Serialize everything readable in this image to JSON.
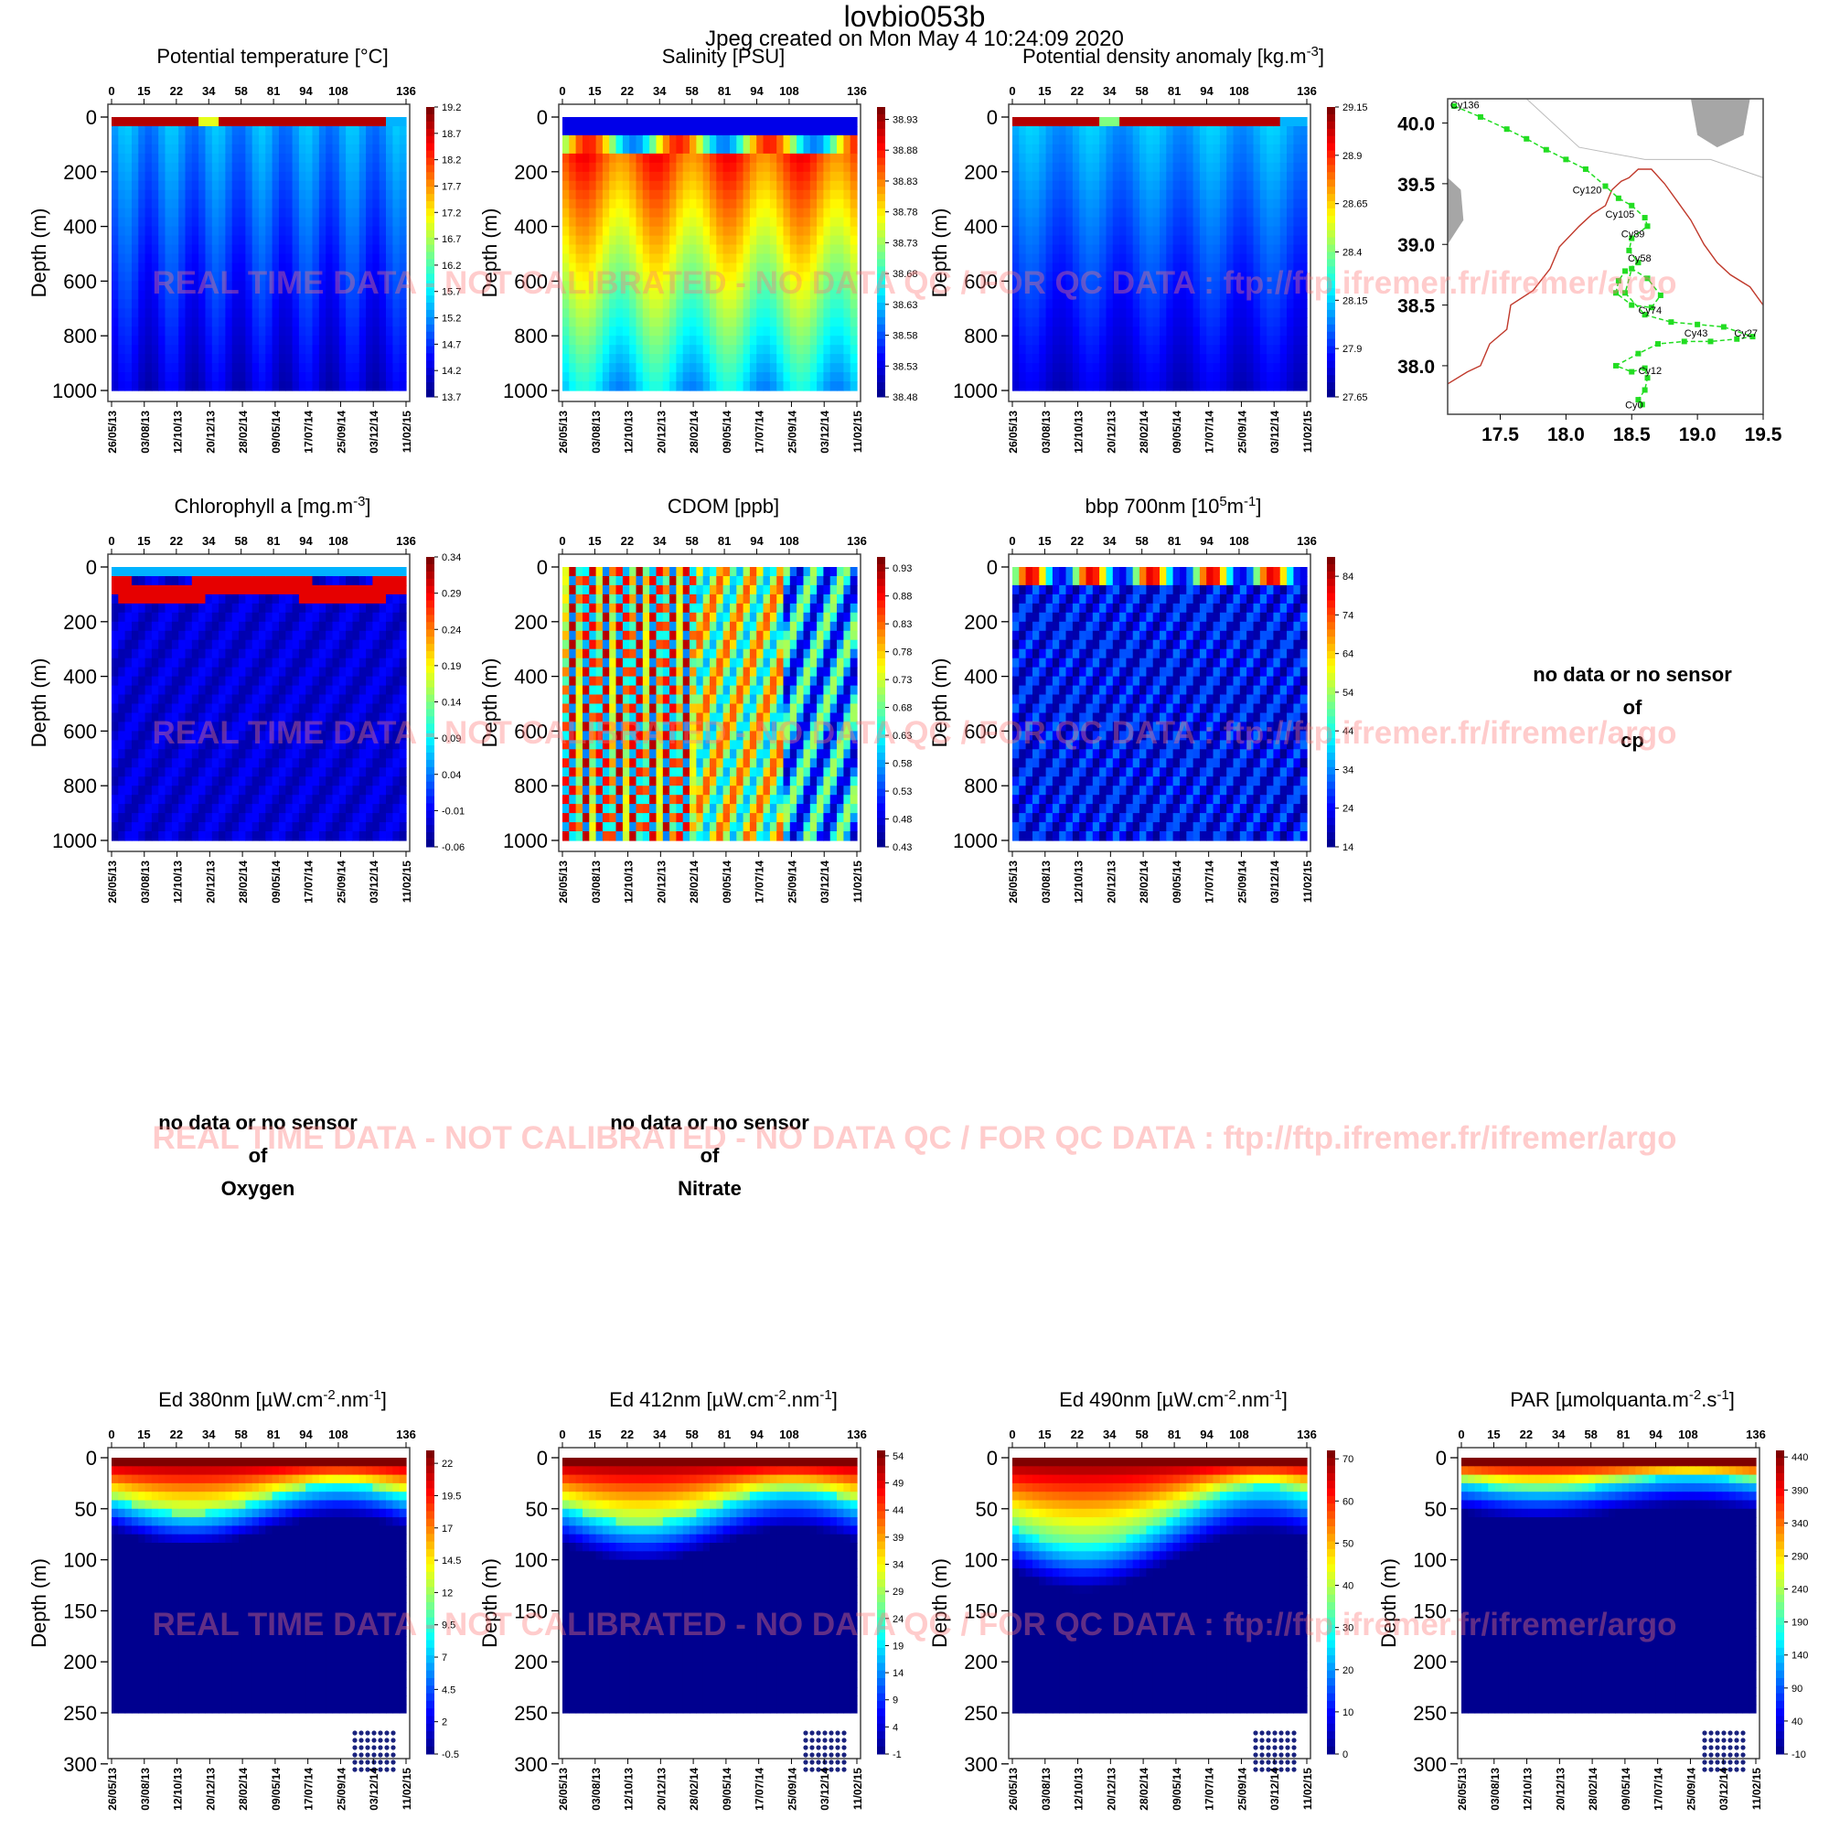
{
  "header": {
    "title": "lovbio053b",
    "subtitle": "Jpeg created on  Mon May  4 10:24:09 2020"
  },
  "watermark": "REAL TIME DATA - NOT CALIBRATED - NO DATA QC   /  FOR QC DATA : ftp://ftp.ifremer.fr/ifremer/argo",
  "no_data": {
    "line1": "no data or no sensor",
    "line2": "of",
    "cp": "cp",
    "oxygen": "Oxygen",
    "nitrate": "Nitrate"
  },
  "colors": {
    "scale": [
      "#00008f",
      "#0000ff",
      "#0080ff",
      "#00ffff",
      "#80ff80",
      "#ffff00",
      "#ff8000",
      "#ff0000",
      "#800000"
    ],
    "track": "#22dd22",
    "coast": "#c0392b",
    "land": "#a6a6a6"
  },
  "chart_data": [
    {
      "type": "heatmap",
      "title": "Potential temperature [°C]",
      "ylabel": "Depth (m)",
      "cycles": [
        "0",
        "15",
        "22",
        "34",
        "58",
        "81",
        "94",
        "108",
        "136"
      ],
      "dates": [
        "26/05/13",
        "03/08/13",
        "12/10/13",
        "20/12/13",
        "28/02/14",
        "09/05/14",
        "17/07/14",
        "25/09/14",
        "03/12/14",
        "11/02/15"
      ],
      "y_ticks": [
        0,
        200,
        400,
        600,
        800,
        1000
      ],
      "ylim": [
        0,
        1000
      ],
      "colorbar": [
        "19.2",
        "18.7",
        "18.2",
        "17.7",
        "17.2",
        "16.7",
        "16.2",
        "15.7",
        "15.2",
        "14.7",
        "14.2",
        "13.7"
      ],
      "vmin": 13.7,
      "vmax": 19.2
    },
    {
      "type": "heatmap",
      "title": "Salinity [PSU]",
      "ylabel": "Depth (m)",
      "cycles": [
        "0",
        "15",
        "22",
        "34",
        "58",
        "81",
        "94",
        "108",
        "136"
      ],
      "dates": [
        "26/05/13",
        "03/08/13",
        "12/10/13",
        "20/12/13",
        "28/02/14",
        "09/05/14",
        "17/07/14",
        "25/09/14",
        "03/12/14",
        "11/02/15"
      ],
      "y_ticks": [
        0,
        200,
        400,
        600,
        800,
        1000
      ],
      "ylim": [
        0,
        1000
      ],
      "colorbar": [
        "38.93",
        "38.88",
        "38.83",
        "38.78",
        "38.73",
        "38.68",
        "38.63",
        "38.58",
        "38.53",
        "38.48"
      ],
      "vmin": 38.48,
      "vmax": 38.95
    },
    {
      "type": "heatmap",
      "title": "Potential density anomaly [kg.m",
      "title_sup": "-3",
      "title_end": "]",
      "ylabel": "Depth (m)",
      "cycles": [
        "0",
        "15",
        "22",
        "34",
        "58",
        "81",
        "94",
        "108",
        "136"
      ],
      "dates": [
        "26/05/13",
        "03/08/13",
        "12/10/13",
        "20/12/13",
        "28/02/14",
        "09/05/14",
        "17/07/14",
        "25/09/14",
        "03/12/14",
        "11/02/15"
      ],
      "y_ticks": [
        0,
        200,
        400,
        600,
        800,
        1000
      ],
      "ylim": [
        0,
        1000
      ],
      "colorbar": [
        "29.15",
        "28.9",
        "28.65",
        "28.4",
        "28.15",
        "27.9",
        "27.65"
      ],
      "vmin": 27.65,
      "vmax": 29.15
    },
    {
      "type": "heatmap",
      "title": "Chlorophyll a [mg.m",
      "title_sup": "-3",
      "title_end": "]",
      "ylabel": "Depth (m)",
      "cycles": [
        "0",
        "15",
        "22",
        "34",
        "58",
        "81",
        "94",
        "108",
        "136"
      ],
      "dates": [
        "26/05/13",
        "03/08/13",
        "12/10/13",
        "20/12/13",
        "28/02/14",
        "09/05/14",
        "17/07/14",
        "25/09/14",
        "03/12/14",
        "11/02/15"
      ],
      "y_ticks": [
        0,
        200,
        400,
        600,
        800,
        1000
      ],
      "ylim": [
        0,
        1000
      ],
      "colorbar": [
        "0.34",
        "0.29",
        "0.24",
        "0.19",
        "0.14",
        "0.09",
        "0.04",
        "-0.01",
        "-0.06"
      ],
      "vmin": -0.06,
      "vmax": 0.34
    },
    {
      "type": "heatmap",
      "title": "CDOM  [ppb]",
      "ylabel": "Depth (m)",
      "cycles": [
        "0",
        "15",
        "22",
        "34",
        "58",
        "81",
        "94",
        "108",
        "136"
      ],
      "dates": [
        "26/05/13",
        "03/08/13",
        "12/10/13",
        "20/12/13",
        "28/02/14",
        "09/05/14",
        "17/07/14",
        "25/09/14",
        "03/12/14",
        "11/02/15"
      ],
      "y_ticks": [
        0,
        200,
        400,
        600,
        800,
        1000
      ],
      "ylim": [
        0,
        1000
      ],
      "colorbar": [
        "0.93",
        "0.88",
        "0.83",
        "0.78",
        "0.73",
        "0.68",
        "0.63",
        "0.58",
        "0.53",
        "0.48",
        "0.43"
      ],
      "vmin": 0.43,
      "vmax": 0.95
    },
    {
      "type": "heatmap",
      "title": "bbp 700nm [10",
      "title_sup": "5",
      "title_mid": "m",
      "title_sup2": "-1",
      "title_end": "]",
      "ylabel": "Depth (m)",
      "cycles": [
        "0",
        "15",
        "22",
        "34",
        "58",
        "81",
        "94",
        "108",
        "136"
      ],
      "dates": [
        "26/05/13",
        "03/08/13",
        "12/10/13",
        "20/12/13",
        "28/02/14",
        "09/05/14",
        "17/07/14",
        "25/09/14",
        "03/12/14",
        "11/02/15"
      ],
      "y_ticks": [
        0,
        200,
        400,
        600,
        800,
        1000
      ],
      "ylim": [
        0,
        1000
      ],
      "colorbar": [
        "84",
        "74",
        "64",
        "54",
        "44",
        "34",
        "24",
        "14"
      ],
      "vmin": 14,
      "vmax": 89
    },
    {
      "type": "heatmap",
      "title": "Ed 380nm [µW.cm",
      "title_sup": "-2",
      "title_mid": ".nm",
      "title_sup2": "-1",
      "title_end": "]",
      "ylabel": "Depth (m)",
      "cycles": [
        "0",
        "15",
        "22",
        "34",
        "58",
        "81",
        "94",
        "108",
        "136"
      ],
      "dates": [
        "26/05/13",
        "03/08/13",
        "12/10/13",
        "20/12/13",
        "28/02/14",
        "09/05/14",
        "17/07/14",
        "25/09/14",
        "03/12/14",
        "11/02/15"
      ],
      "y_ticks": [
        0,
        50,
        100,
        150,
        200,
        250,
        300
      ],
      "ylim": [
        0,
        300
      ],
      "colorbar": [
        "22",
        "19.5",
        "17",
        "14.5",
        "12",
        "9.5",
        "7",
        "4.5",
        "2",
        "-0.5"
      ],
      "vmin": -0.5,
      "vmax": 23
    },
    {
      "type": "heatmap",
      "title": "Ed 412nm [µW.cm",
      "title_sup": "-2",
      "title_mid": ".nm",
      "title_sup2": "-1",
      "title_end": "]",
      "ylabel": "Depth (m)",
      "cycles": [
        "0",
        "15",
        "22",
        "34",
        "58",
        "81",
        "94",
        "108",
        "136"
      ],
      "dates": [
        "26/05/13",
        "03/08/13",
        "12/10/13",
        "20/12/13",
        "28/02/14",
        "09/05/14",
        "17/07/14",
        "25/09/14",
        "03/12/14",
        "11/02/15"
      ],
      "y_ticks": [
        0,
        50,
        100,
        150,
        200,
        250,
        300
      ],
      "ylim": [
        0,
        300
      ],
      "colorbar": [
        "54",
        "49",
        "44",
        "39",
        "34",
        "29",
        "24",
        "19",
        "14",
        "9",
        "4",
        "-1"
      ],
      "vmin": -1,
      "vmax": 55
    },
    {
      "type": "heatmap",
      "title": "Ed 490nm [µW.cm",
      "title_sup": "-2",
      "title_mid": ".nm",
      "title_sup2": "-1",
      "title_end": "]",
      "ylabel": "Depth (m)",
      "cycles": [
        "0",
        "15",
        "22",
        "34",
        "58",
        "81",
        "94",
        "108",
        "136"
      ],
      "dates": [
        "26/05/13",
        "03/08/13",
        "12/10/13",
        "20/12/13",
        "28/02/14",
        "09/05/14",
        "17/07/14",
        "25/09/14",
        "03/12/14",
        "11/02/15"
      ],
      "y_ticks": [
        0,
        50,
        100,
        150,
        200,
        250,
        300
      ],
      "ylim": [
        0,
        300
      ],
      "colorbar": [
        "70",
        "60",
        "50",
        "40",
        "30",
        "20",
        "10",
        "0"
      ],
      "vmin": 0,
      "vmax": 72
    },
    {
      "type": "heatmap",
      "title": "PAR [µmolquanta.m",
      "title_sup": "-2",
      "title_mid": ".s",
      "title_sup2": "-1",
      "title_end": "]",
      "ylabel": "Depth (m)",
      "cycles": [
        "0",
        "15",
        "22",
        "34",
        "58",
        "81",
        "94",
        "108",
        "136"
      ],
      "dates": [
        "26/05/13",
        "03/08/13",
        "12/10/13",
        "20/12/13",
        "28/02/14",
        "09/05/14",
        "17/07/14",
        "25/09/14",
        "03/12/14",
        "11/02/15"
      ],
      "y_ticks": [
        0,
        50,
        100,
        150,
        200,
        250,
        300
      ],
      "ylim": [
        0,
        300
      ],
      "colorbar": [
        "440",
        "390",
        "340",
        "290",
        "240",
        "190",
        "140",
        "90",
        "40",
        "-10"
      ],
      "vmin": -10,
      "vmax": 450
    },
    {
      "type": "scatter",
      "title": "",
      "xlim": [
        17.1,
        19.5
      ],
      "ylim": [
        37.6,
        40.2
      ],
      "x_ticks": [
        "17.5",
        "18.0",
        "18.5",
        "19.0",
        "19.5"
      ],
      "y_ticks": [
        "40.0",
        "39.5",
        "39.0",
        "38.5",
        "38.0"
      ],
      "track_x": [
        17.15,
        17.35,
        17.55,
        17.7,
        17.85,
        18.0,
        18.15,
        18.3,
        18.4,
        18.5,
        18.6,
        18.62,
        18.5,
        18.48,
        18.55,
        18.45,
        18.4,
        18.38,
        18.5,
        18.65,
        18.72,
        18.62,
        18.5,
        18.45,
        18.6,
        18.8,
        19.0,
        19.2,
        19.42,
        19.3,
        19.1,
        18.9,
        18.7,
        18.55,
        18.38,
        18.5,
        18.6,
        18.62,
        18.6,
        18.55,
        18.58
      ],
      "track_y": [
        40.14,
        40.05,
        39.95,
        39.87,
        39.78,
        39.7,
        39.62,
        39.48,
        39.38,
        39.32,
        39.22,
        39.15,
        39.05,
        38.95,
        38.85,
        38.78,
        38.7,
        38.6,
        38.5,
        38.48,
        38.58,
        38.72,
        38.8,
        38.6,
        38.42,
        38.36,
        38.34,
        38.32,
        38.24,
        38.22,
        38.2,
        38.2,
        38.18,
        38.1,
        38.0,
        37.95,
        37.98,
        37.9,
        37.8,
        37.72,
        37.68
      ],
      "labels": [
        {
          "text": "Cy136",
          "x": 17.12,
          "y": 40.12
        },
        {
          "text": "Cy120",
          "x": 18.05,
          "y": 39.42
        },
        {
          "text": "Cy105",
          "x": 18.3,
          "y": 39.22
        },
        {
          "text": "Cy89",
          "x": 18.42,
          "y": 39.06
        },
        {
          "text": "Cy58",
          "x": 18.47,
          "y": 38.86
        },
        {
          "text": "Cy74",
          "x": 18.55,
          "y": 38.43
        },
        {
          "text": "Cy43",
          "x": 18.9,
          "y": 38.24
        },
        {
          "text": "Cy27",
          "x": 19.28,
          "y": 38.24
        },
        {
          "text": "Cy12",
          "x": 18.55,
          "y": 37.93
        },
        {
          "text": "Cy0",
          "x": 18.45,
          "y": 37.65
        }
      ],
      "coast_x": [
        17.1,
        17.25,
        17.35,
        17.42,
        17.55,
        17.58,
        17.75,
        17.88,
        17.95,
        18.1,
        18.2,
        18.3,
        18.35,
        18.42,
        18.48,
        18.55,
        18.65,
        18.75,
        18.85,
        18.95,
        19.05,
        19.15,
        19.25,
        19.4,
        19.5
      ],
      "coast_y": [
        37.85,
        37.95,
        38.0,
        38.18,
        38.3,
        38.5,
        38.62,
        38.8,
        38.98,
        39.15,
        39.25,
        39.32,
        39.45,
        39.52,
        39.55,
        39.62,
        39.62,
        39.5,
        39.35,
        39.2,
        39.0,
        38.85,
        38.75,
        38.65,
        38.5
      ]
    }
  ]
}
